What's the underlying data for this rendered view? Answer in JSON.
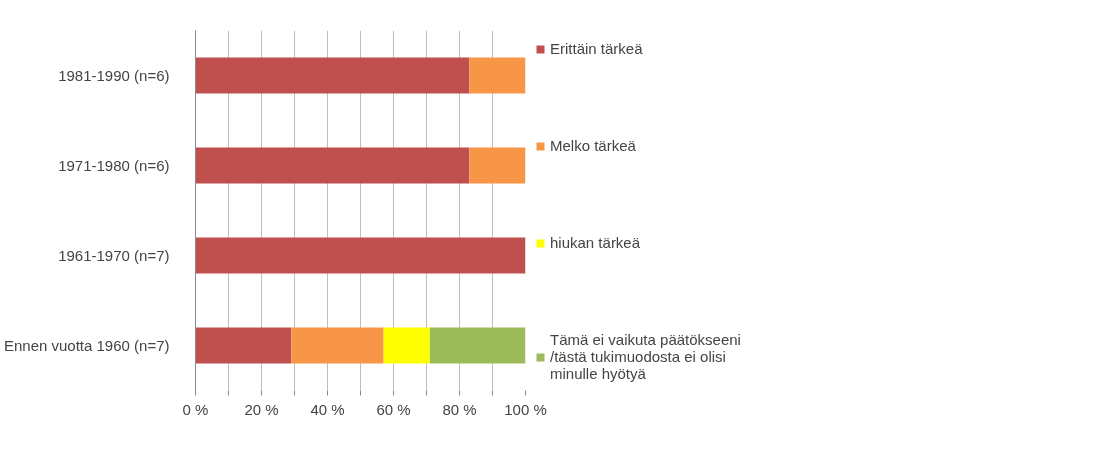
{
  "chart_data": {
    "type": "bar",
    "orientation": "horizontal",
    "stacked": true,
    "categories": [
      "1981-1990 (n=6)",
      "1971-1980 (n=6)",
      "1961-1970 (n=7)",
      "Ennen vuotta 1960 (n=7)"
    ],
    "series": [
      {
        "name": "Erittäin tärkeä",
        "color": "#c0504d",
        "values": [
          83,
          83,
          100,
          29
        ]
      },
      {
        "name": "Melko tärkeä",
        "color": "#f79646",
        "values": [
          17,
          17,
          0,
          28
        ]
      },
      {
        "name": "hiukan tärkeä",
        "color": "#ffff00",
        "values": [
          0,
          0,
          0,
          14
        ]
      },
      {
        "name": "Tämä ei vaikuta päätökseeni /tästä tukimuodosta ei olisi minulle hyötyä",
        "color": "#9bbb59",
        "values": [
          0,
          0,
          0,
          29
        ]
      }
    ],
    "xlim": [
      0,
      100
    ],
    "xticks": [
      {
        "value": 0,
        "label": "0 %"
      },
      {
        "value": 10,
        "label": null
      },
      {
        "value": 20,
        "label": "20 %"
      },
      {
        "value": 30,
        "label": null
      },
      {
        "value": 40,
        "label": "40 %"
      },
      {
        "value": 50,
        "label": null
      },
      {
        "value": 60,
        "label": "60 %"
      },
      {
        "value": 70,
        "label": null
      },
      {
        "value": 80,
        "label": "80 %"
      },
      {
        "value": 90,
        "label": null
      },
      {
        "value": 100,
        "label": "100 %"
      }
    ],
    "grid": "x",
    "legend": "right"
  }
}
